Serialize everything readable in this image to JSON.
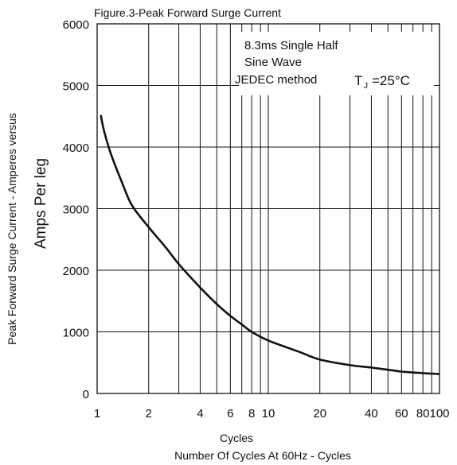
{
  "chart_data": {
    "type": "line",
    "title": "Figure.3-Peak Forward Surge Current",
    "xlabel": "Cycles",
    "xlabel2": "Number Of Cycles At  60Hz  - Cycles",
    "ylabel": "Peak Forward Surge Current - Amperes  versus",
    "ylabel2": "Amps    Per leg",
    "xscale": "log",
    "xlim": [
      1,
      100
    ],
    "ylim": [
      0,
      6000
    ],
    "grid": true,
    "x_ticks": [
      "1",
      "2",
      "4",
      "6",
      "8",
      "10",
      "20",
      "40",
      "60",
      "80",
      "100"
    ],
    "x_tick_values": [
      1,
      2,
      4,
      6,
      8,
      10,
      20,
      40,
      60,
      80,
      100
    ],
    "x_grid": [
      2,
      3,
      4,
      5,
      6,
      7,
      8,
      9,
      10,
      20,
      30,
      40,
      50,
      60,
      70,
      80,
      90
    ],
    "y_ticks": [
      "0",
      "1000",
      "2000",
      "3000",
      "4000",
      "5000",
      "6000"
    ],
    "y_tick_values": [
      0,
      1000,
      2000,
      3000,
      4000,
      5000,
      6000
    ],
    "annotations": {
      "line1": "8.3ms  Single   Half",
      "line2": "Sine  Wave",
      "line3": "JEDEC  method",
      "tj": "T",
      "tj_sub": "J",
      "tj_value": "=25°C"
    },
    "series": [
      {
        "x": [
          1.05,
          1.1,
          1.2,
          1.4,
          1.6,
          2,
          2.5,
          3,
          4,
          5,
          6,
          7,
          8,
          10,
          15,
          20,
          30,
          40,
          50,
          60,
          70,
          80,
          90,
          100
        ],
        "y": [
          4520,
          4250,
          3900,
          3420,
          3050,
          2700,
          2380,
          2100,
          1720,
          1450,
          1260,
          1120,
          1000,
          860,
          680,
          550,
          460,
          420,
          385,
          355,
          340,
          330,
          322,
          318
        ]
      }
    ]
  }
}
